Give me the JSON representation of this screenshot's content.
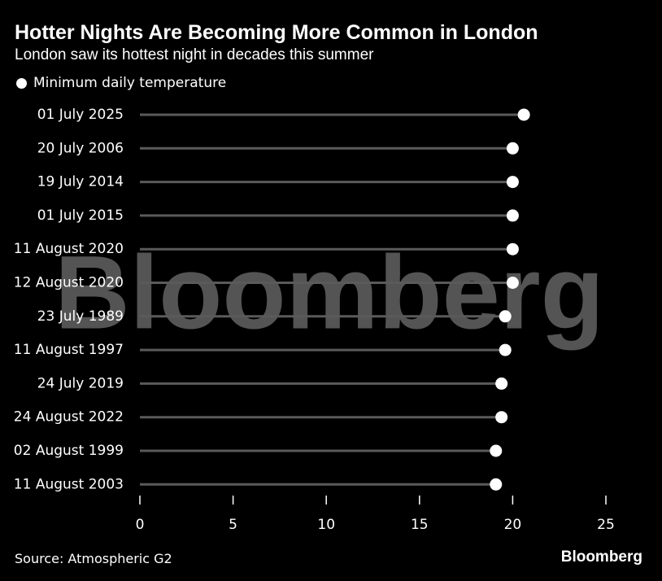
{
  "title": "Hotter Nights Are Becoming More Common in London",
  "subtitle": "London saw its hottest night in decades this summer",
  "legend": {
    "label": "Minimum daily temperature"
  },
  "source": "Source: Atmospheric G2",
  "brand": "Bloomberg",
  "watermark": "Bloomberg",
  "colors": {
    "background": "#000000",
    "dot": "#ffffff",
    "stem": "#5a5a5a",
    "text": "#ffffff"
  },
  "chart_data": {
    "type": "scatter",
    "orientation": "horizontal-dot",
    "categories": [
      "01 July 2025",
      "20 July 2006",
      "19 July 2014",
      "01 July 2015",
      "11 August 2020",
      "12 August 2020",
      "23 July 1989",
      "11 August 1997",
      "24 July 2019",
      "24 August 2022",
      "02 August 1999",
      "11 August 2003"
    ],
    "series": [
      {
        "name": "Minimum daily temperature",
        "values": [
          20.6,
          20.0,
          20.0,
          20.0,
          20.0,
          20.0,
          19.6,
          19.6,
          19.4,
          19.4,
          19.1,
          19.1
        ]
      }
    ],
    "xlim": [
      0,
      25
    ],
    "xticks": [
      0,
      5,
      10,
      15,
      20,
      25
    ],
    "title": "Hotter Nights Are Becoming More Common in London",
    "subtitle": "London saw its hottest night in decades this summer",
    "xlabel": "",
    "ylabel": "",
    "grid": false,
    "legend_position": "top-left"
  }
}
